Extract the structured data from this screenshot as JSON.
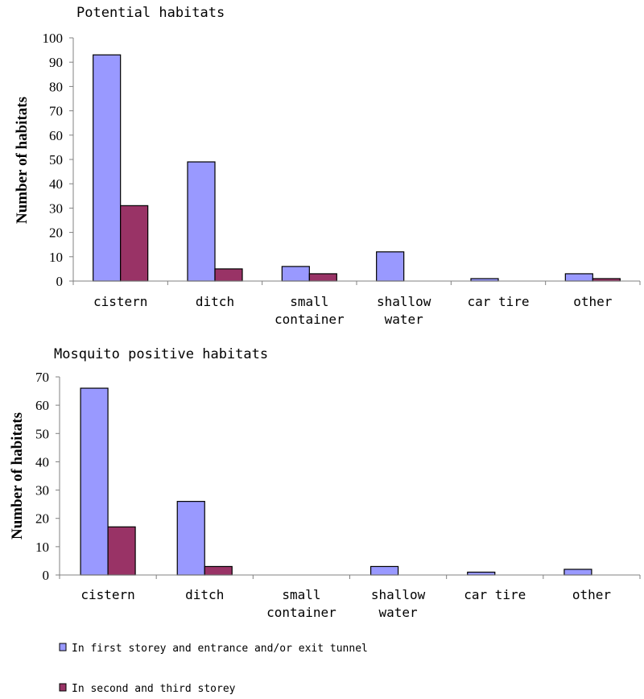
{
  "chart_data": [
    {
      "type": "bar",
      "title": "Potential habitats",
      "ylabel": "Number of habitats",
      "xlabel": "",
      "ylim": [
        0,
        100
      ],
      "yticks": [
        0,
        10,
        20,
        30,
        40,
        50,
        60,
        70,
        80,
        90,
        100
      ],
      "categories": [
        [
          "cistern"
        ],
        [
          "ditch"
        ],
        [
          "small",
          "container"
        ],
        [
          "shallow",
          "water"
        ],
        [
          "car tire"
        ],
        [
          "other"
        ]
      ],
      "series": [
        {
          "name": "In first storey and entrance and/or exit tunnel",
          "values": [
            93,
            49,
            6,
            12,
            1,
            3
          ]
        },
        {
          "name": "In second and third storey",
          "values": [
            31,
            5,
            3,
            0,
            0,
            1
          ]
        }
      ]
    },
    {
      "type": "bar",
      "title": "Mosquito positive habitats",
      "ylabel": "Number of habitats",
      "xlabel": "",
      "ylim": [
        0,
        70
      ],
      "yticks": [
        0,
        10,
        20,
        30,
        40,
        50,
        60,
        70
      ],
      "categories": [
        [
          "cistern"
        ],
        [
          "ditch"
        ],
        [
          "small",
          "container"
        ],
        [
          "shallow",
          "water"
        ],
        [
          "car tire"
        ],
        [
          "other"
        ]
      ],
      "series": [
        {
          "name": "In first storey and entrance and/or exit tunnel",
          "values": [
            66,
            26,
            0,
            3,
            1,
            2
          ]
        },
        {
          "name": "In second and third storey",
          "values": [
            17,
            3,
            0,
            0,
            0,
            0
          ]
        }
      ]
    }
  ],
  "legend": {
    "items": [
      {
        "label": "In first storey and entrance and/or exit tunnel",
        "color": "#9999ff"
      },
      {
        "label": "In second and third storey",
        "color": "#993366"
      }
    ]
  },
  "colors": {
    "series1": "#9999ff",
    "series2": "#993366",
    "axis": "#808080"
  }
}
